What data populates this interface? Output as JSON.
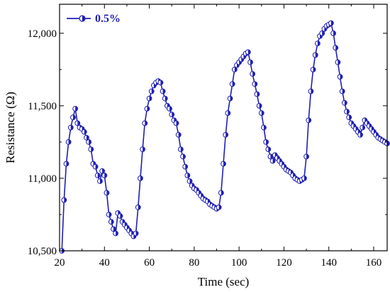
{
  "chart_data": {
    "type": "line",
    "xlabel": "Time (sec)",
    "ylabel": "Resistance (Ω)",
    "xlim": [
      20,
      166
    ],
    "ylim": [
      10500,
      12200
    ],
    "x_ticks": [
      20,
      40,
      60,
      80,
      100,
      120,
      140,
      160
    ],
    "y_ticks": [
      10500,
      11000,
      11500,
      12000
    ],
    "y_tick_labels": [
      "10,500",
      "11,000",
      "11,500",
      "12,000"
    ],
    "legend_position": "top-left",
    "grid": false,
    "marker": "half-filled-circle",
    "color": "#1f1fb4",
    "series": [
      {
        "name": "0.5%",
        "x": [
          21,
          22,
          23,
          24,
          25,
          26,
          27,
          28,
          29,
          30,
          31,
          32,
          33,
          34,
          35,
          36,
          37,
          38,
          39,
          40,
          41,
          42,
          43,
          44,
          45,
          46,
          47,
          48,
          49,
          50,
          51,
          52,
          53,
          54,
          55,
          56,
          57,
          58,
          59,
          60,
          61,
          62,
          63,
          64,
          65,
          66,
          67,
          68,
          69,
          70,
          71,
          72,
          73,
          74,
          75,
          76,
          77,
          78,
          79,
          80,
          81,
          82,
          83,
          84,
          85,
          86,
          87,
          88,
          89,
          90,
          91,
          92,
          93,
          94,
          95,
          96,
          97,
          98,
          99,
          100,
          101,
          102,
          103,
          104,
          105,
          106,
          107,
          108,
          109,
          110,
          111,
          112,
          113,
          114,
          115,
          116,
          117,
          118,
          119,
          120,
          121,
          122,
          123,
          124,
          125,
          126,
          127,
          128,
          129,
          130,
          131,
          132,
          133,
          134,
          135,
          136,
          137,
          138,
          139,
          140,
          141,
          142,
          143,
          144,
          145,
          146,
          147,
          148,
          149,
          150,
          151,
          152,
          153,
          154,
          155,
          156,
          157,
          158,
          159,
          160,
          161,
          162,
          163,
          164,
          165,
          166
        ],
        "y": [
          10500,
          10850,
          11100,
          11250,
          11350,
          11420,
          11480,
          11380,
          11350,
          11340,
          11320,
          11280,
          11250,
          11200,
          11100,
          11080,
          11020,
          10980,
          11050,
          11020,
          10900,
          10750,
          10700,
          10650,
          10620,
          10760,
          10740,
          10700,
          10680,
          10660,
          10640,
          10620,
          10600,
          10620,
          10800,
          11000,
          11200,
          11380,
          11480,
          11550,
          11600,
          11640,
          11660,
          11670,
          11660,
          11600,
          11550,
          11500,
          11480,
          11440,
          11400,
          11380,
          11300,
          11200,
          11150,
          11080,
          11020,
          10980,
          10950,
          10930,
          10920,
          10900,
          10880,
          10860,
          10850,
          10840,
          10820,
          10810,
          10800,
          10790,
          10800,
          10900,
          11100,
          11300,
          11450,
          11550,
          11650,
          11750,
          11780,
          11800,
          11820,
          11840,
          11860,
          11870,
          11800,
          11720,
          11650,
          11580,
          11500,
          11450,
          11350,
          11250,
          11200,
          11150,
          11120,
          11160,
          11140,
          11120,
          11100,
          11080,
          11060,
          11050,
          11040,
          11020,
          11000,
          10990,
          10980,
          10990,
          11000,
          11150,
          11400,
          11600,
          11750,
          11850,
          11930,
          11980,
          12000,
          12030,
          12050,
          12060,
          12070,
          12000,
          11900,
          11800,
          11700,
          11600,
          11520,
          11460,
          11420,
          11380,
          11360,
          11340,
          11320,
          11300,
          11350,
          11400,
          11380,
          11360,
          11340,
          11320,
          11300,
          11280,
          11270,
          11260,
          11250,
          11240
        ]
      }
    ]
  }
}
